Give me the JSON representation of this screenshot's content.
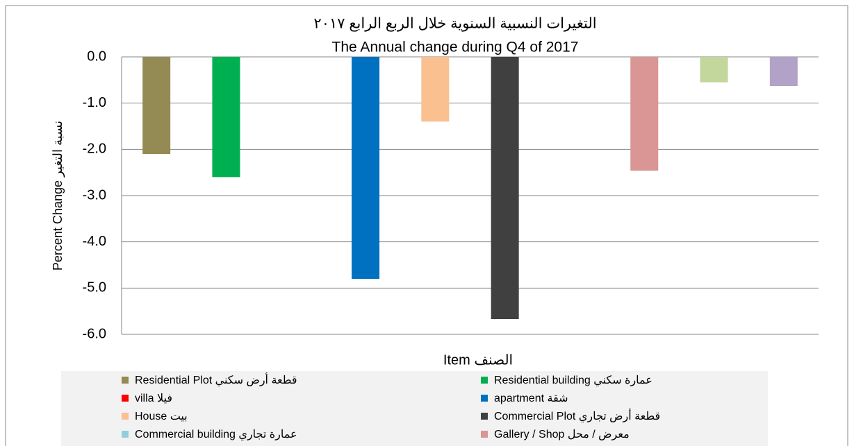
{
  "chart_data": {
    "type": "bar",
    "title": "التغيرات النسبية السنوية خلال الربع الرابع ٢٠١٧",
    "subtitle": "The Annual change during Q4 of 2017",
    "y_label": "Percent Change نسبة التغير",
    "x_label": "Item الصنف",
    "ylim": [
      -6,
      0
    ],
    "yticks": [
      {
        "value": 0,
        "label": "0.0"
      },
      {
        "value": -1,
        "label": "-1.0"
      },
      {
        "value": -2,
        "label": "-2.0"
      },
      {
        "value": -3,
        "label": "-3.0"
      },
      {
        "value": -4,
        "label": "-4.0"
      },
      {
        "value": -5,
        "label": "-5.0"
      },
      {
        "value": -6,
        "label": "-6.0"
      }
    ],
    "grid": true,
    "legend": "bottom",
    "series": [
      {
        "name": "Residential  Plot قطعة أرض سكني",
        "color": "#948a54",
        "values": [
          -2.1
        ]
      },
      {
        "name": "Residential  building عمارة سكني",
        "color": "#00b050",
        "values": [
          -2.6
        ]
      },
      {
        "name": "villa فيلا",
        "color": "#ff0000",
        "values": [
          0
        ]
      },
      {
        "name": "apartment شقة",
        "color": "#0070c0",
        "values": [
          -4.8
        ]
      },
      {
        "name": "House بيت",
        "color": "#fac090",
        "values": [
          -1.4
        ]
      },
      {
        "name": "Commercial  Plot قطعة أرض تجاري",
        "color": "#404040",
        "values": [
          -5.67
        ]
      },
      {
        "name": "Commercial building عمارة تجاري",
        "color": "#92cddc",
        "values": [
          0
        ]
      },
      {
        "name": "Gallery  /  Shop معرض / محل",
        "color": "#d99694",
        "values": [
          -2.46
        ]
      },
      {
        "name": null,
        "color": "#c3d69b",
        "values": [
          -0.55
        ]
      },
      {
        "name": null,
        "color": "#b3a2c7",
        "values": [
          -0.63
        ]
      }
    ]
  }
}
